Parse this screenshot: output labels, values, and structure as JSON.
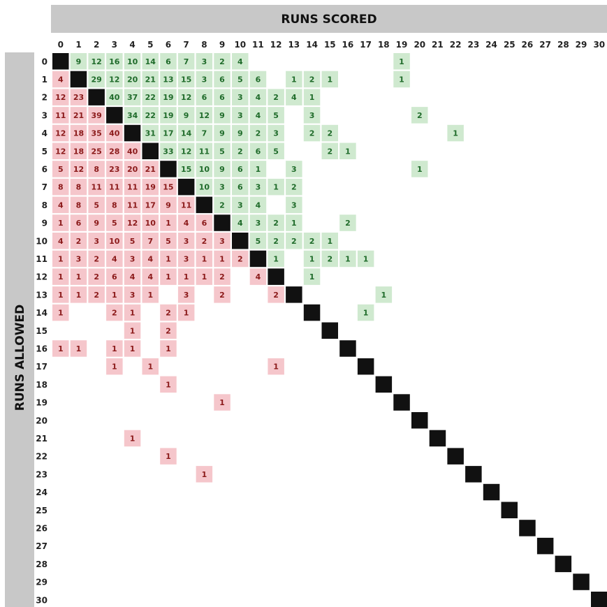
{
  "chart_data": {
    "type": "heatmap",
    "title": "",
    "xlabel": "RUNS SCORED",
    "ylabel": "RUNS ALLOWED",
    "x_ticks": [
      "0",
      "1",
      "2",
      "3",
      "4",
      "5",
      "6",
      "7",
      "8",
      "9",
      "10",
      "11",
      "12",
      "13",
      "14",
      "15",
      "16",
      "17",
      "18",
      "19",
      "20",
      "21",
      "22",
      "23",
      "24",
      "25",
      "26",
      "27",
      "28",
      "29",
      "30"
    ],
    "y_ticks": [
      "0",
      "1",
      "2",
      "3",
      "4",
      "5",
      "6",
      "7",
      "8",
      "9",
      "10",
      "11",
      "12",
      "13",
      "14",
      "15",
      "16",
      "17",
      "18",
      "19",
      "20",
      "21",
      "22",
      "23",
      "24",
      "25",
      "26",
      "27",
      "28",
      "29",
      "30"
    ],
    "colors": {
      "win_fill": "#cfe9cf",
      "win_text": "#1f6b2a",
      "loss_fill": "#f5c6cb",
      "loss_text": "#8b1a1a",
      "diagonal": "#111111",
      "band": "#c8c8c8"
    },
    "rows": [
      [
        0,
        [
          [
            1,
            9
          ],
          [
            2,
            12
          ],
          [
            3,
            16
          ],
          [
            4,
            10
          ],
          [
            5,
            14
          ],
          [
            6,
            6
          ],
          [
            7,
            7
          ],
          [
            8,
            3
          ],
          [
            9,
            2
          ],
          [
            10,
            4
          ],
          [
            19,
            1
          ]
        ]
      ],
      [
        1,
        [
          [
            0,
            4
          ],
          [
            2,
            29
          ],
          [
            3,
            12
          ],
          [
            4,
            20
          ],
          [
            5,
            21
          ],
          [
            6,
            13
          ],
          [
            7,
            15
          ],
          [
            8,
            3
          ],
          [
            9,
            6
          ],
          [
            10,
            5
          ],
          [
            11,
            6
          ],
          [
            13,
            1
          ],
          [
            14,
            2
          ],
          [
            15,
            1
          ],
          [
            19,
            1
          ]
        ]
      ],
      [
        2,
        [
          [
            0,
            12
          ],
          [
            1,
            23
          ],
          [
            3,
            40
          ],
          [
            4,
            37
          ],
          [
            5,
            22
          ],
          [
            6,
            19
          ],
          [
            7,
            12
          ],
          [
            8,
            6
          ],
          [
            9,
            6
          ],
          [
            10,
            3
          ],
          [
            11,
            4
          ],
          [
            12,
            2
          ],
          [
            13,
            4
          ],
          [
            14,
            1
          ]
        ]
      ],
      [
        3,
        [
          [
            0,
            11
          ],
          [
            1,
            21
          ],
          [
            2,
            39
          ],
          [
            4,
            34
          ],
          [
            5,
            22
          ],
          [
            6,
            19
          ],
          [
            7,
            9
          ],
          [
            8,
            12
          ],
          [
            9,
            9
          ],
          [
            10,
            3
          ],
          [
            11,
            4
          ],
          [
            12,
            5
          ],
          [
            14,
            3
          ],
          [
            20,
            2
          ]
        ]
      ],
      [
        4,
        [
          [
            0,
            12
          ],
          [
            1,
            18
          ],
          [
            2,
            35
          ],
          [
            3,
            40
          ],
          [
            5,
            31
          ],
          [
            6,
            17
          ],
          [
            7,
            14
          ],
          [
            8,
            7
          ],
          [
            9,
            9
          ],
          [
            10,
            9
          ],
          [
            11,
            2
          ],
          [
            12,
            3
          ],
          [
            14,
            2
          ],
          [
            15,
            2
          ],
          [
            22,
            1
          ]
        ]
      ],
      [
        5,
        [
          [
            0,
            12
          ],
          [
            1,
            18
          ],
          [
            2,
            25
          ],
          [
            3,
            28
          ],
          [
            4,
            40
          ],
          [
            6,
            33
          ],
          [
            7,
            12
          ],
          [
            8,
            11
          ],
          [
            9,
            5
          ],
          [
            10,
            2
          ],
          [
            11,
            6
          ],
          [
            12,
            5
          ],
          [
            15,
            2
          ],
          [
            16,
            1
          ]
        ]
      ],
      [
        6,
        [
          [
            0,
            5
          ],
          [
            1,
            12
          ],
          [
            2,
            8
          ],
          [
            3,
            23
          ],
          [
            4,
            20
          ],
          [
            5,
            21
          ],
          [
            7,
            15
          ],
          [
            8,
            10
          ],
          [
            9,
            9
          ],
          [
            10,
            6
          ],
          [
            11,
            1
          ],
          [
            13,
            3
          ],
          [
            20,
            1
          ]
        ]
      ],
      [
        7,
        [
          [
            0,
            8
          ],
          [
            1,
            8
          ],
          [
            2,
            11
          ],
          [
            3,
            11
          ],
          [
            4,
            11
          ],
          [
            5,
            19
          ],
          [
            6,
            15
          ],
          [
            8,
            10
          ],
          [
            9,
            3
          ],
          [
            10,
            6
          ],
          [
            11,
            3
          ],
          [
            12,
            1
          ],
          [
            13,
            2
          ]
        ]
      ],
      [
        8,
        [
          [
            0,
            4
          ],
          [
            1,
            8
          ],
          [
            2,
            5
          ],
          [
            3,
            8
          ],
          [
            4,
            11
          ],
          [
            5,
            17
          ],
          [
            6,
            9
          ],
          [
            7,
            11
          ],
          [
            9,
            2
          ],
          [
            10,
            3
          ],
          [
            11,
            4
          ],
          [
            13,
            3
          ]
        ]
      ],
      [
        9,
        [
          [
            0,
            1
          ],
          [
            1,
            6
          ],
          [
            2,
            9
          ],
          [
            3,
            5
          ],
          [
            4,
            12
          ],
          [
            5,
            10
          ],
          [
            6,
            1
          ],
          [
            7,
            4
          ],
          [
            8,
            6
          ],
          [
            10,
            4
          ],
          [
            11,
            3
          ],
          [
            12,
            2
          ],
          [
            13,
            1
          ],
          [
            16,
            2
          ]
        ]
      ],
      [
        10,
        [
          [
            0,
            4
          ],
          [
            1,
            2
          ],
          [
            2,
            3
          ],
          [
            3,
            10
          ],
          [
            4,
            5
          ],
          [
            5,
            7
          ],
          [
            6,
            5
          ],
          [
            7,
            3
          ],
          [
            8,
            2
          ],
          [
            9,
            3
          ],
          [
            11,
            5
          ],
          [
            12,
            2
          ],
          [
            13,
            2
          ],
          [
            14,
            2
          ],
          [
            15,
            1
          ]
        ]
      ],
      [
        11,
        [
          [
            0,
            1
          ],
          [
            1,
            3
          ],
          [
            2,
            2
          ],
          [
            3,
            4
          ],
          [
            4,
            3
          ],
          [
            5,
            4
          ],
          [
            6,
            1
          ],
          [
            7,
            3
          ],
          [
            8,
            1
          ],
          [
            9,
            1
          ],
          [
            10,
            2
          ],
          [
            12,
            1
          ],
          [
            14,
            1
          ],
          [
            15,
            2
          ],
          [
            16,
            1
          ],
          [
            17,
            1
          ]
        ]
      ],
      [
        12,
        [
          [
            0,
            1
          ],
          [
            1,
            1
          ],
          [
            2,
            2
          ],
          [
            3,
            6
          ],
          [
            4,
            4
          ],
          [
            5,
            4
          ],
          [
            6,
            1
          ],
          [
            7,
            1
          ],
          [
            8,
            1
          ],
          [
            9,
            2
          ],
          [
            11,
            4
          ],
          [
            14,
            1
          ]
        ]
      ],
      [
        13,
        [
          [
            0,
            1
          ],
          [
            1,
            1
          ],
          [
            2,
            2
          ],
          [
            3,
            1
          ],
          [
            4,
            3
          ],
          [
            5,
            1
          ],
          [
            7,
            3
          ],
          [
            9,
            2
          ],
          [
            12,
            2
          ],
          [
            18,
            1
          ]
        ]
      ],
      [
        14,
        [
          [
            0,
            1
          ],
          [
            3,
            2
          ],
          [
            4,
            1
          ],
          [
            6,
            2
          ],
          [
            7,
            1
          ],
          [
            17,
            1
          ]
        ]
      ],
      [
        15,
        [
          [
            4,
            1
          ],
          [
            6,
            2
          ]
        ]
      ],
      [
        16,
        [
          [
            0,
            1
          ],
          [
            1,
            1
          ],
          [
            3,
            1
          ],
          [
            4,
            1
          ],
          [
            6,
            1
          ]
        ]
      ],
      [
        17,
        [
          [
            3,
            1
          ],
          [
            5,
            1
          ],
          [
            12,
            1
          ]
        ]
      ],
      [
        18,
        [
          [
            6,
            1
          ]
        ]
      ],
      [
        19,
        [
          [
            9,
            1
          ]
        ]
      ],
      [
        20,
        []
      ],
      [
        21,
        [
          [
            4,
            1
          ]
        ]
      ],
      [
        22,
        [
          [
            6,
            1
          ]
        ]
      ],
      [
        23,
        [
          [
            8,
            1
          ]
        ]
      ],
      [
        24,
        []
      ],
      [
        25,
        []
      ],
      [
        26,
        []
      ],
      [
        27,
        []
      ],
      [
        28,
        []
      ],
      [
        29,
        []
      ],
      [
        30,
        []
      ]
    ]
  }
}
